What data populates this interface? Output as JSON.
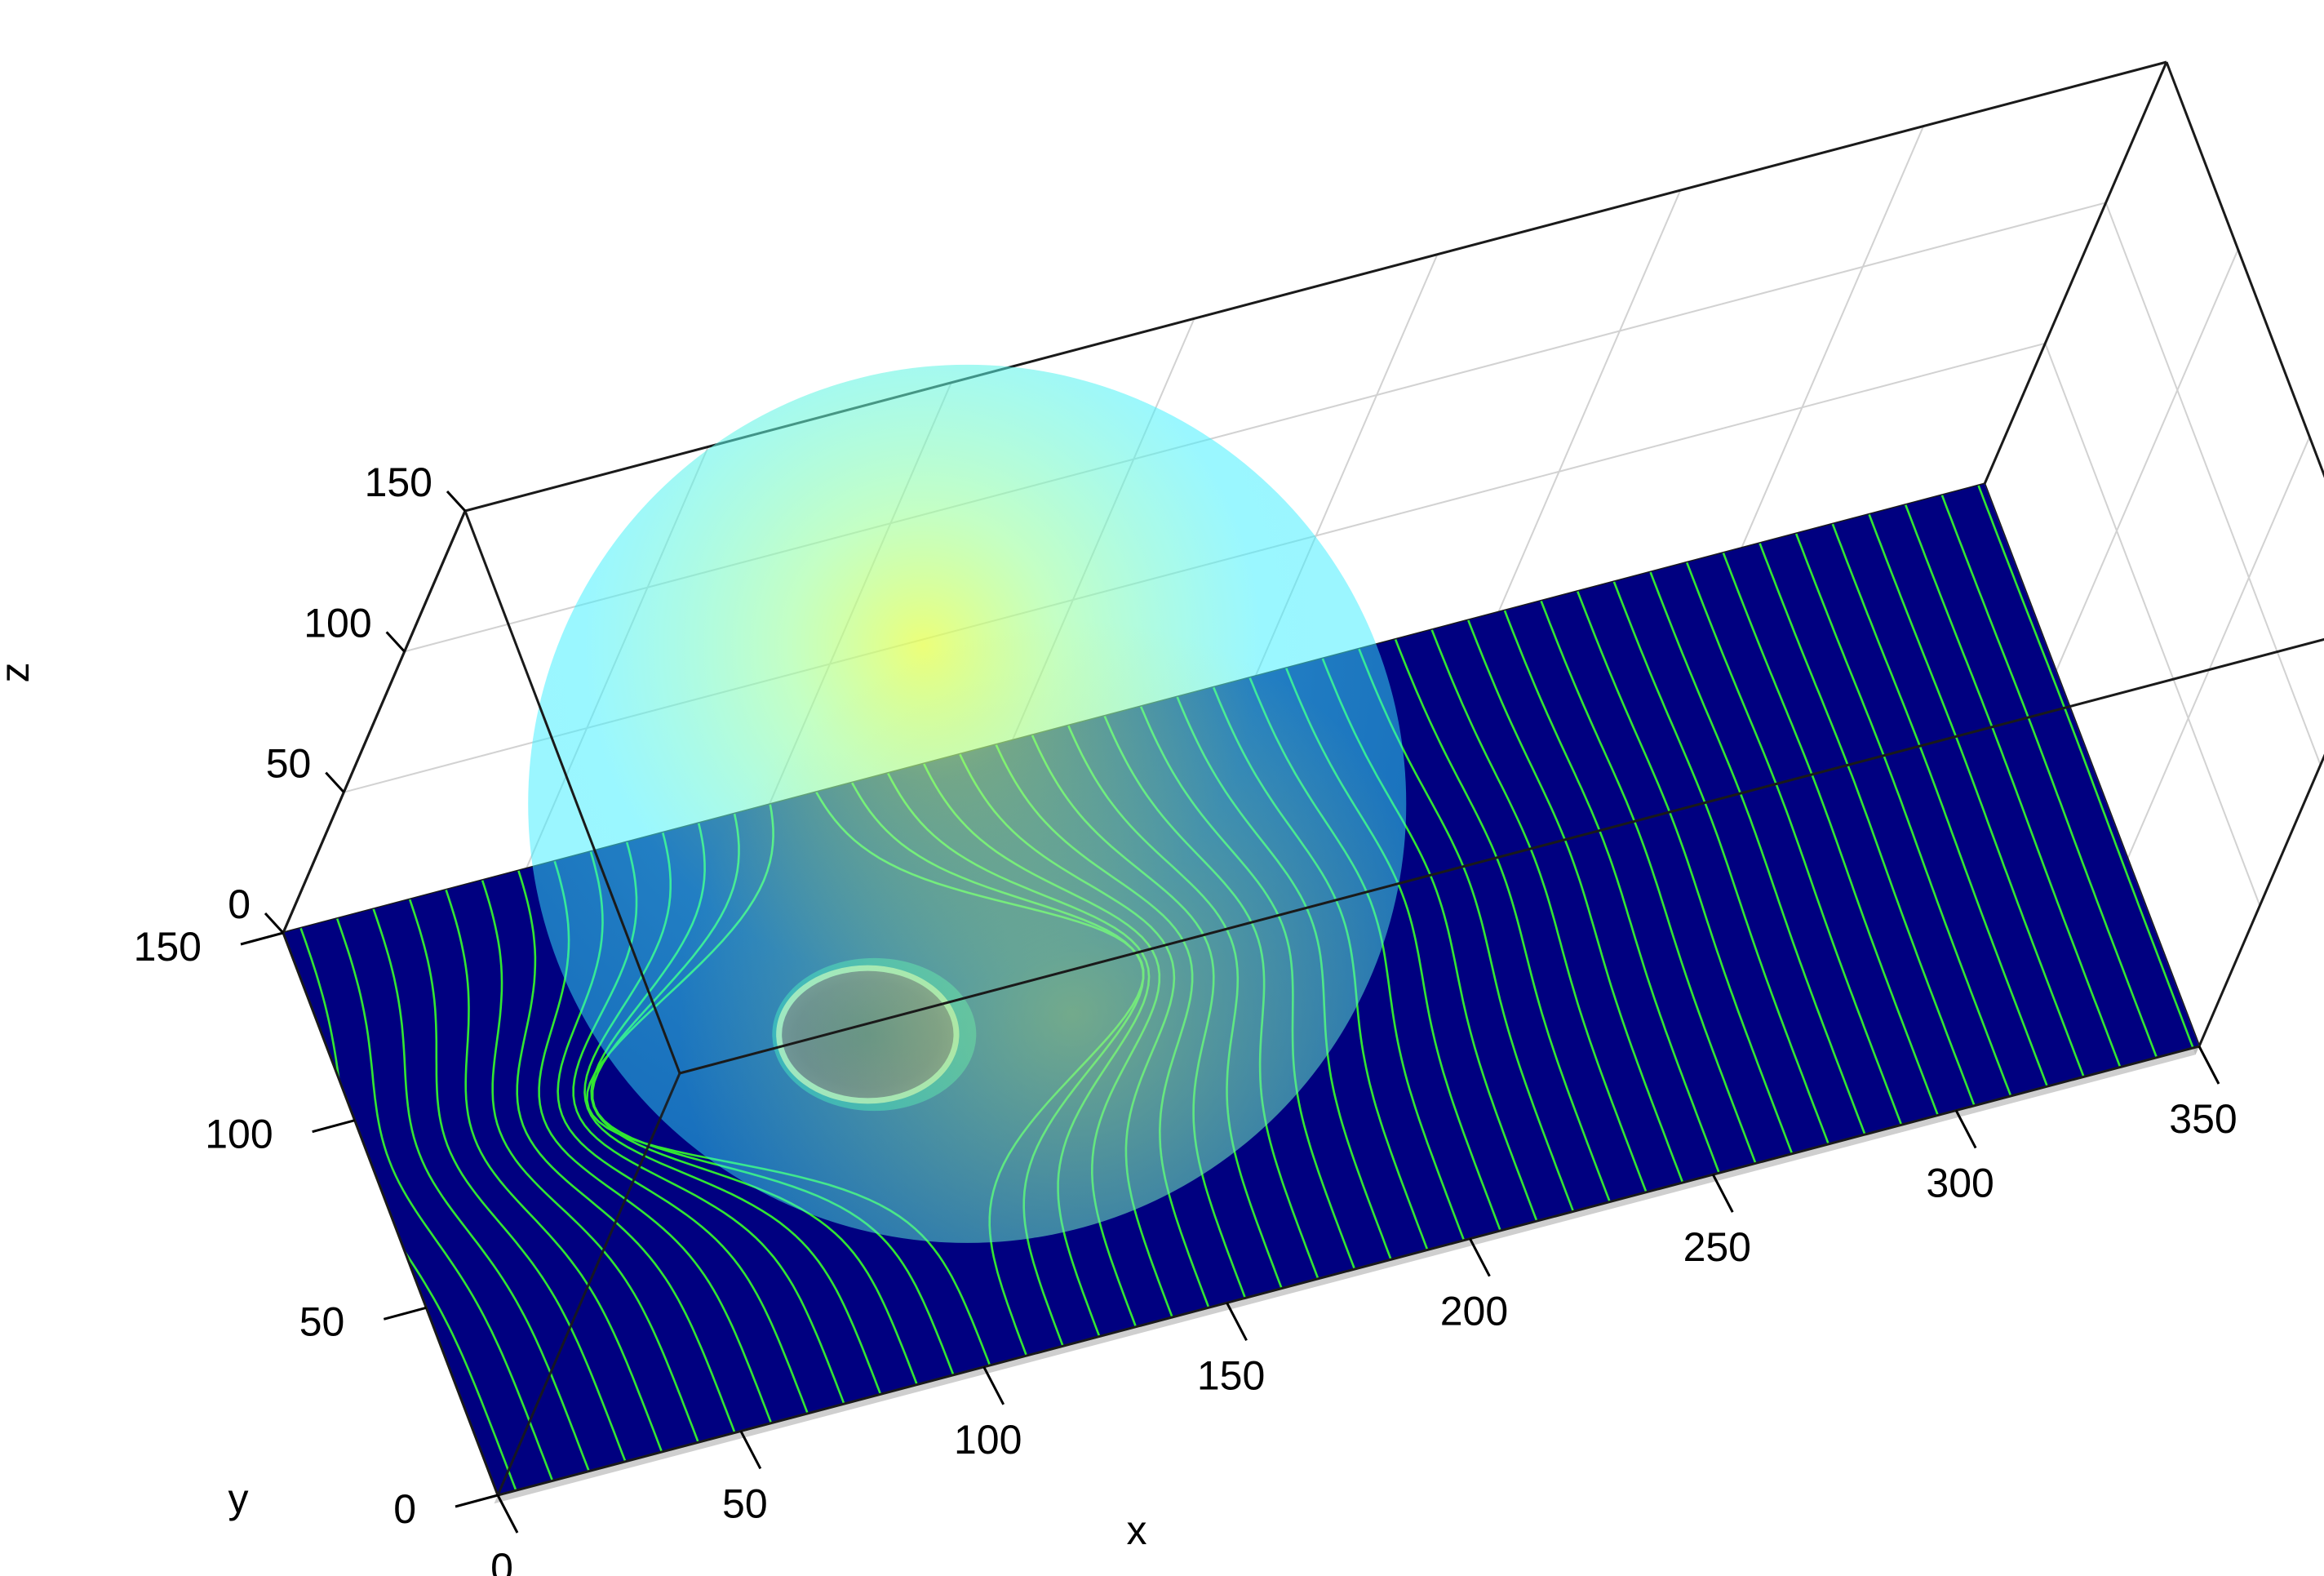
{
  "chart_data": {
    "type": "surface",
    "title": "",
    "xlabel": "x",
    "ylabel": "y",
    "zlabel": "z",
    "xlim": [
      0,
      350
    ],
    "ylim": [
      0,
      150
    ],
    "zlim": [
      0,
      150
    ],
    "xticks": [
      "0",
      "50",
      "100",
      "150",
      "200",
      "250",
      "300",
      "350"
    ],
    "yticks": [
      "0",
      "50",
      "100",
      "150"
    ],
    "zticks": [
      "0",
      "50",
      "100",
      "150"
    ],
    "grid": true,
    "box": true,
    "colormap": "parula",
    "colors": {
      "floor": "#000080",
      "streamline": "#32e632",
      "sphere": "#40f0ff",
      "sphere_highlight": "#e6ff50",
      "contact_patch": "#7a1533",
      "contact_ring": "#f7e2a0"
    },
    "surfaces": [
      {
        "kind": "plane",
        "z": 0,
        "color_level": 0,
        "streamline_spacing_x": 7.5
      },
      {
        "kind": "sphere",
        "center": [
          102,
          88,
          82
        ],
        "radius": 82,
        "opacity": 0.6,
        "contact_point": [
          102,
          88,
          0
        ],
        "contact_radius": 18
      }
    ]
  }
}
